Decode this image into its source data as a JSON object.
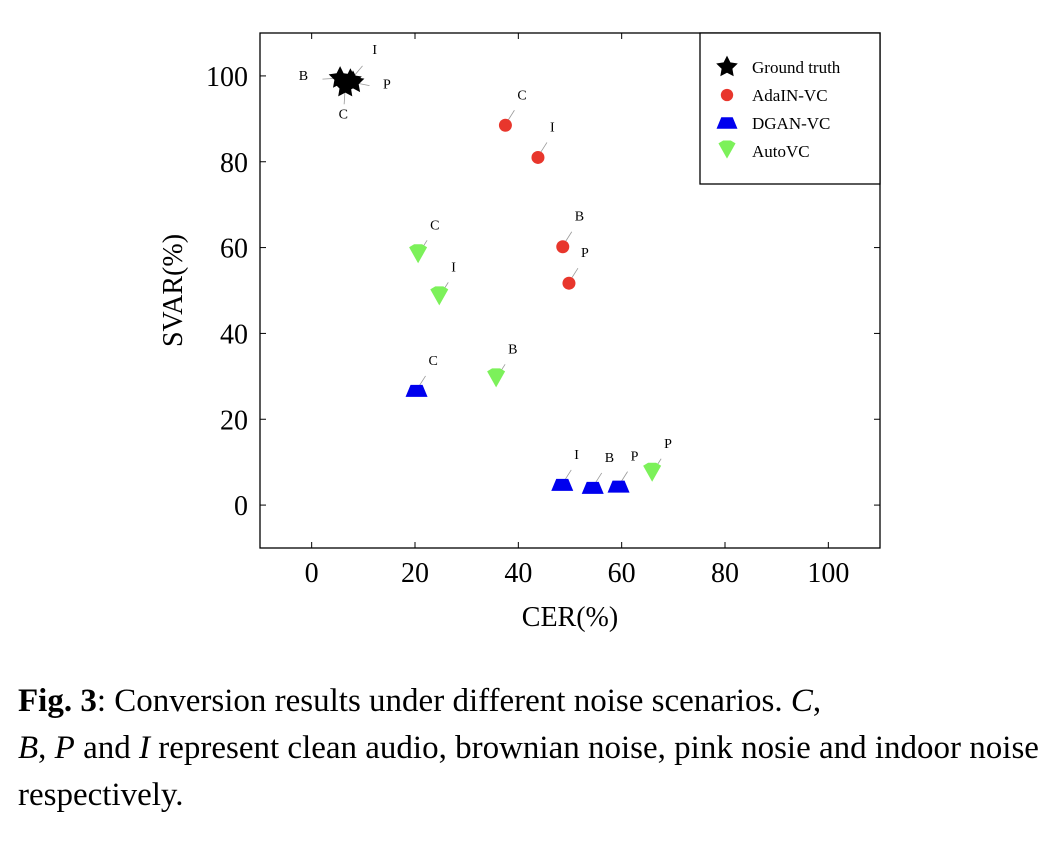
{
  "chart_data": {
    "type": "scatter",
    "xlabel": "CER(%)",
    "ylabel": "SVAR(%)",
    "xlim": [
      -10,
      110
    ],
    "ylim": [
      -10,
      110
    ],
    "xticks": [
      0,
      20,
      40,
      60,
      80,
      100
    ],
    "yticks": [
      0,
      20,
      40,
      60,
      80,
      100
    ],
    "grid": false,
    "legend_position": "top-right",
    "series": [
      {
        "name": "Ground truth",
        "marker": "star",
        "color": "#000000",
        "points": [
          {
            "x": 5.5,
            "y": 99.5,
            "label": "B"
          },
          {
            "x": 7.5,
            "y": 99.0,
            "label": "I"
          },
          {
            "x": 8.0,
            "y": 98.5,
            "label": "P"
          },
          {
            "x": 6.5,
            "y": 97.5,
            "label": "C"
          }
        ]
      },
      {
        "name": "AdaIN-VC",
        "marker": "circle",
        "color": "#e8362c",
        "points": [
          {
            "x": 37.5,
            "y": 88.5,
            "label": "C"
          },
          {
            "x": 43.8,
            "y": 81.0,
            "label": "I"
          },
          {
            "x": 48.6,
            "y": 60.2,
            "label": "B"
          },
          {
            "x": 49.8,
            "y": 51.7,
            "label": "P"
          }
        ]
      },
      {
        "name": "DGAN-VC",
        "marker": "trapezoid",
        "color": "#0000ee",
        "points": [
          {
            "x": 20.3,
            "y": 26.6,
            "label": "C"
          },
          {
            "x": 48.5,
            "y": 4.7,
            "label": "I"
          },
          {
            "x": 54.4,
            "y": 4.0,
            "label": "B"
          },
          {
            "x": 59.4,
            "y": 4.3,
            "label": "P"
          }
        ]
      },
      {
        "name": "AutoVC",
        "marker": "diamond",
        "color": "#7cf15a",
        "points": [
          {
            "x": 20.6,
            "y": 58.2,
            "label": "C"
          },
          {
            "x": 24.7,
            "y": 48.4,
            "label": "I"
          },
          {
            "x": 35.7,
            "y": 29.3,
            "label": "B"
          },
          {
            "x": 65.9,
            "y": 7.3,
            "label": "P"
          }
        ]
      }
    ]
  },
  "caption": {
    "fig_label": "Fig. 3",
    "line1": ": Conversion results under different noise scenarios. ",
    "c": "C",
    "comma1": ",",
    "b": "B",
    "comma2": ", ",
    "p": "P",
    "and_text": " and ",
    "i": "I",
    "rest": " represent clean audio, brownian noise, pink nosie and indoor noise respectively."
  }
}
